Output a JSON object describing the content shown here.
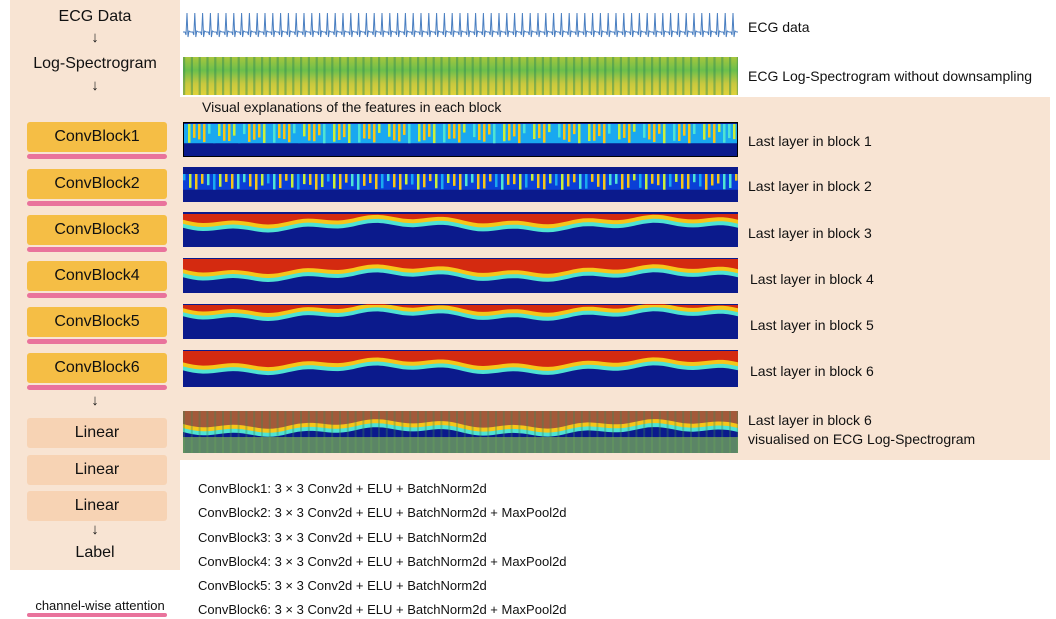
{
  "pipeline": {
    "ecg_data": "ECG Data",
    "log_spectrogram": "Log-Spectrogram",
    "conv_blocks": [
      "ConvBlock1",
      "ConvBlock2",
      "ConvBlock3",
      "ConvBlock4",
      "ConvBlock5",
      "ConvBlock6"
    ],
    "linear_layers": [
      "Linear",
      "Linear",
      "Linear"
    ],
    "label": "Label"
  },
  "legend": {
    "channel_attention": "channel-wise attention",
    "color": "#e9739c"
  },
  "panel": {
    "title": "Visual explanations of the features in each block",
    "ecg_label": "ECG data",
    "spectrogram_label": "ECG Log-Spectrogram without downsampling",
    "block_labels": [
      "Last layer in block 1",
      "Last layer in block 2",
      "Last layer in block 3",
      "Last layer in block 4",
      "Last layer in block 5",
      "Last layer in block 6"
    ],
    "overlay_label_line1": "Last layer in block 6",
    "overlay_label_line2": "visualised on ECG Log-Spectrogram"
  },
  "block_configs": [
    "ConvBlock1: 3 × 3 Conv2d + ELU + BatchNorm2d",
    "ConvBlock2: 3 × 3 Conv2d + ELU + BatchNorm2d + MaxPool2d",
    "ConvBlock3: 3 × 3 Conv2d + ELU + BatchNorm2d",
    "ConvBlock4: 3 × 3 Conv2d + ELU + BatchNorm2d + MaxPool2d",
    "ConvBlock5: 3 × 3 Conv2d + ELU + BatchNorm2d",
    "ConvBlock6: 3 × 3 Conv2d + ELU + BatchNorm2d + MaxPool2d"
  ],
  "colors": {
    "pipeline_bg": "#f8e4d3",
    "conv_block": "#f5be45",
    "linear_block": "#f7d3b4",
    "heatmap_low": "#0b1a8c",
    "heatmap_high": "#d42a10",
    "ecg_trace": "#4a7fc1"
  }
}
